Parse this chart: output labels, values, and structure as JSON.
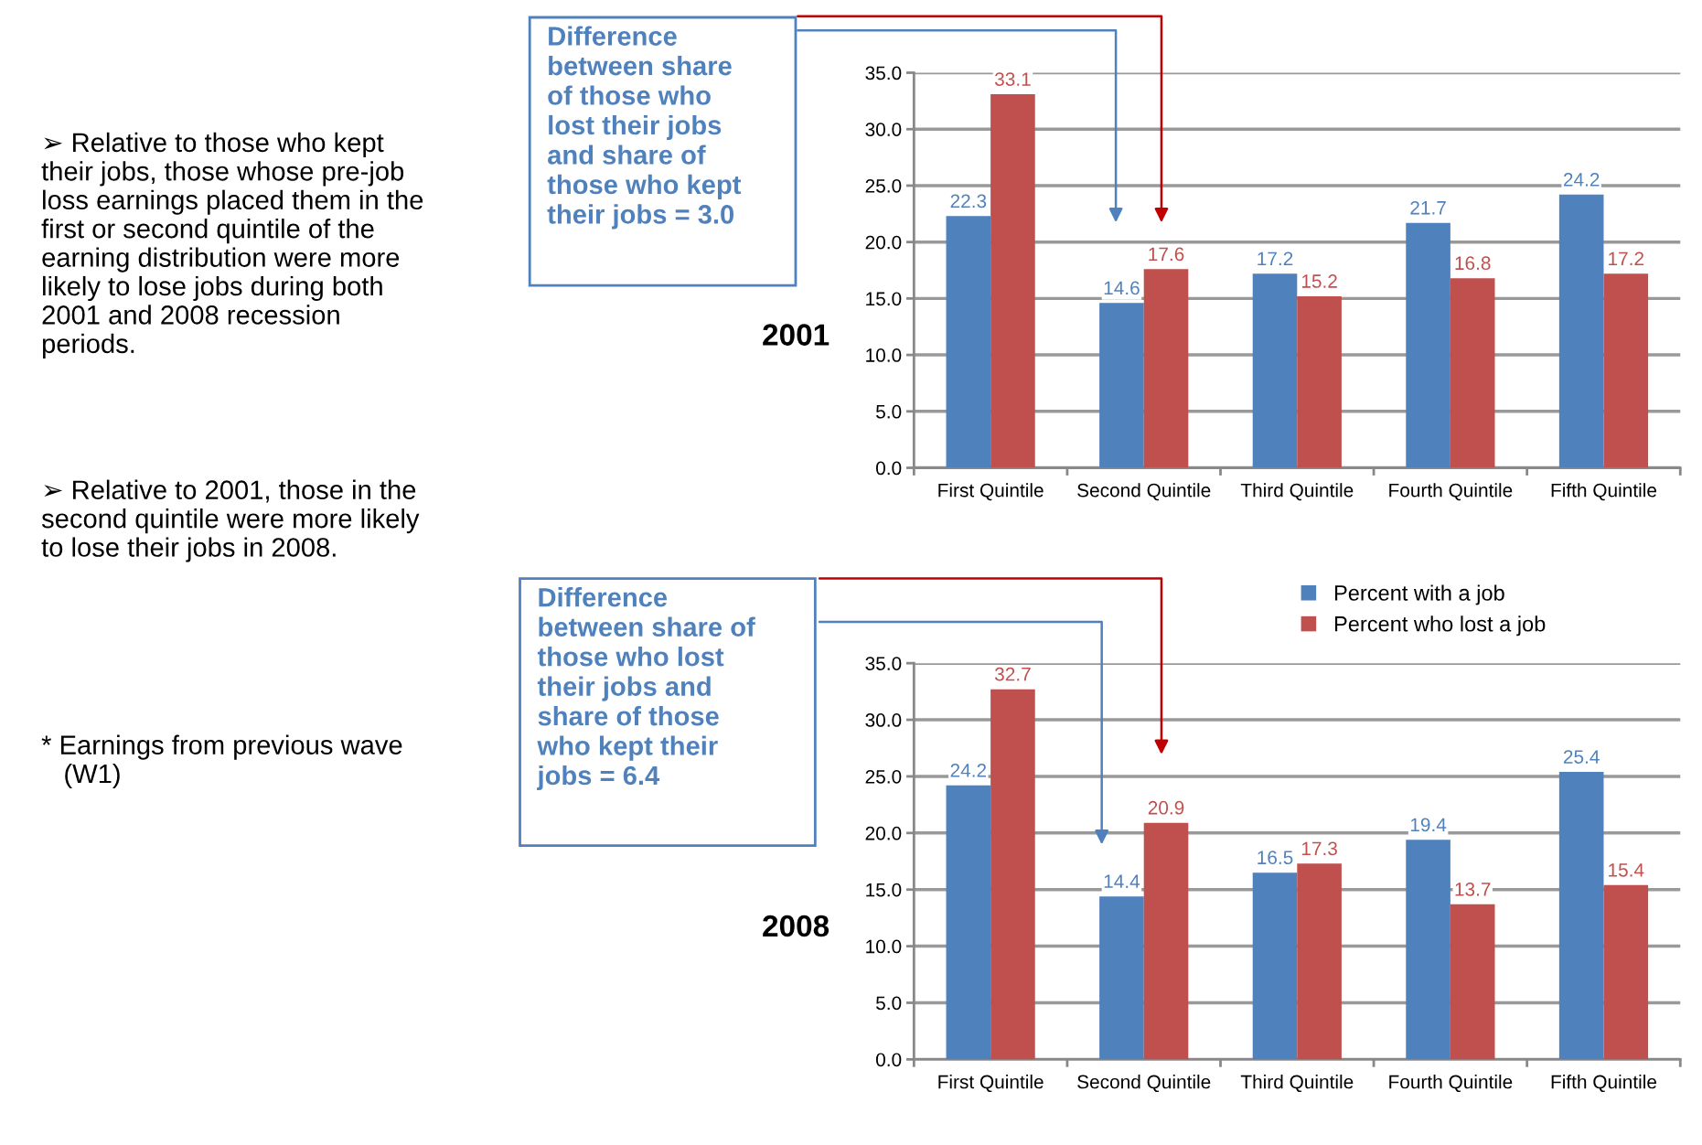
{
  "chart_data": [
    {
      "type": "bar",
      "title": "2001",
      "categories": [
        "First Quintile",
        "Second Quintile",
        "Third Quintile",
        "Fourth Quintile",
        "Fifth Quintile"
      ],
      "series": [
        {
          "color": "#4f81bd",
          "values": [
            22.3,
            14.6,
            17.2,
            21.7,
            24.2
          ]
        },
        {
          "color": "#c0504d",
          "values": [
            33.1,
            17.6,
            15.2,
            16.8,
            17.2
          ]
        }
      ],
      "ylim": [
        0,
        35
      ],
      "yticks": [
        {
          "value": 0,
          "label": "0.0"
        },
        {
          "value": 5,
          "label": "5.0"
        },
        {
          "value": 10,
          "label": "10.0"
        },
        {
          "value": 15,
          "label": "15.0"
        },
        {
          "value": 20,
          "label": "20.0"
        },
        {
          "value": 25,
          "label": "25.0"
        },
        {
          "value": 30,
          "label": "30.0"
        },
        {
          "value": 35,
          "label": "35.0"
        }
      ],
      "grid": "y",
      "data_labels": true,
      "annotations": [
        "Difference\nbetween share\nof those who\nlost their jobs\nand share of\nthose who kept\ntheir jobs = 3.0",
        "➢ Relative to those who kept\ntheir jobs, those whose pre-job\nloss earnings placed them in the\nfirst or second quintile of the\nearning distribution were more\nlikely to lose jobs during both\n2001 and 2008 recession\nperiods.",
        "➢ Relative to 2001, those in the\nsecond quintile were more likely\nto lose their jobs in 2008.",
        "* Earnings from previous wave\n   (W1)"
      ]
    },
    {
      "type": "bar",
      "title": "2008",
      "categories": [
        "First Quintile",
        "Second Quintile",
        "Third Quintile",
        "Fourth Quintile",
        "Fifth Quintile"
      ],
      "series": [
        {
          "name": "Percent with a job",
          "color": "#4f81bd",
          "values": [
            24.2,
            14.4,
            16.5,
            19.4,
            25.4
          ]
        },
        {
          "name": "Percent who lost a job",
          "color": "#c0504d",
          "values": [
            32.7,
            20.9,
            17.3,
            13.7,
            15.4
          ]
        }
      ],
      "ylim": [
        0,
        35
      ],
      "yticks": [
        {
          "value": 0,
          "label": "0.0"
        },
        {
          "value": 5,
          "label": "5.0"
        },
        {
          "value": 10,
          "label": "10.0"
        },
        {
          "value": 15,
          "label": "15.0"
        },
        {
          "value": 20,
          "label": "20.0"
        },
        {
          "value": 25,
          "label": "25.0"
        },
        {
          "value": 30,
          "label": "30.0"
        },
        {
          "value": 35,
          "label": "35.0"
        }
      ],
      "grid": "y",
      "data_labels": true,
      "legend": "top right",
      "annotations": [
        "Difference\nbetween share of\nthose who lost\ntheir jobs and\nshare of those\nwho kept their\njobs = 6.4"
      ]
    }
  ]
}
